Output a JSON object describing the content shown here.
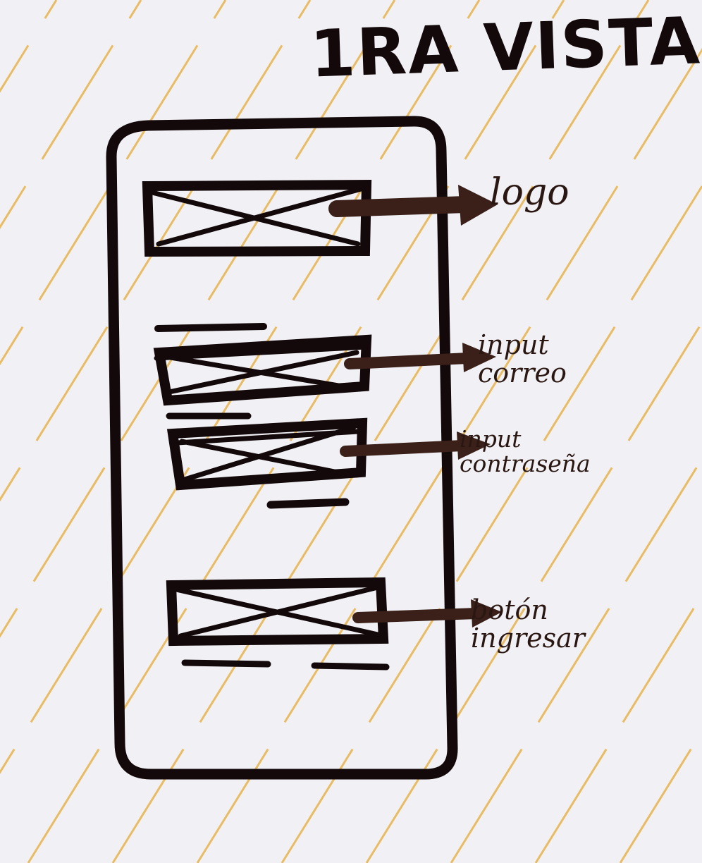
{
  "title": "1RA VISTA",
  "colors": {
    "paper": "#f1f1f5",
    "stripe": "#e8b24a",
    "ink": "#14090a",
    "arrow": "#3a2019"
  },
  "wireframe": {
    "screen": "mobile-screen-frame",
    "elements": [
      {
        "id": "logo",
        "kind": "image-placeholder",
        "annotation": [
          "logo"
        ]
      },
      {
        "id": "email",
        "kind": "input-placeholder",
        "annotation": [
          "input",
          "correo"
        ]
      },
      {
        "id": "password",
        "kind": "input-placeholder",
        "annotation": [
          "input",
          "contraseña"
        ]
      },
      {
        "id": "submit",
        "kind": "button-placeholder",
        "annotation": [
          "botón",
          "ingresar"
        ]
      }
    ]
  }
}
